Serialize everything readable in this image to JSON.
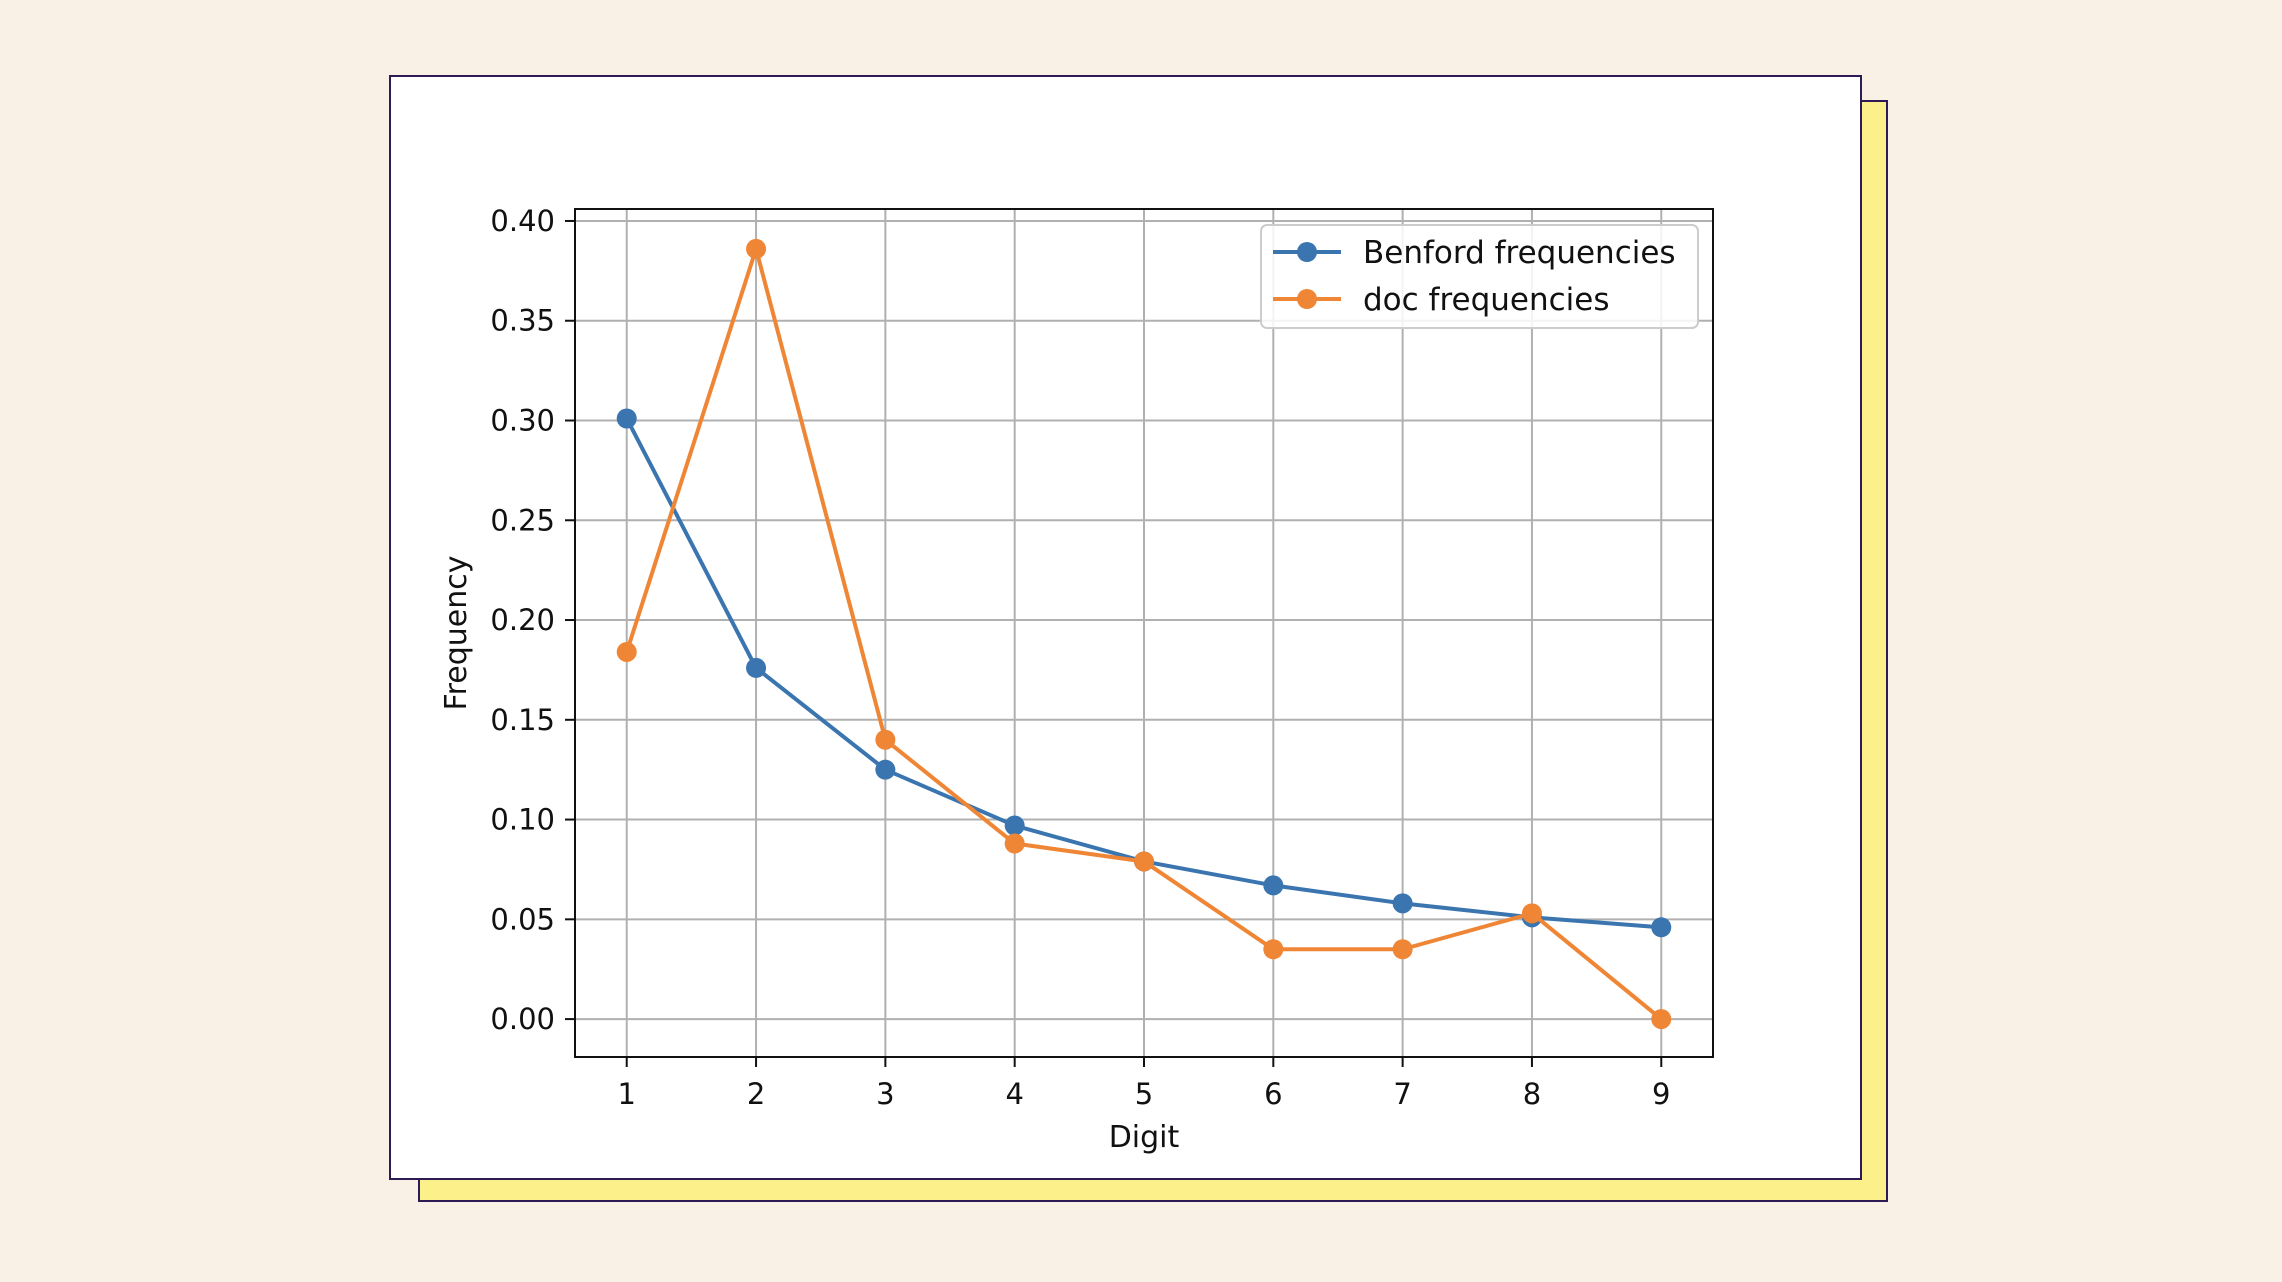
{
  "chart_data": {
    "type": "line",
    "title": "",
    "xlabel": "Digit",
    "ylabel": "Frequency",
    "x": [
      1,
      2,
      3,
      4,
      5,
      6,
      7,
      8,
      9
    ],
    "xticks": [
      "1",
      "2",
      "3",
      "4",
      "5",
      "6",
      "7",
      "8",
      "9"
    ],
    "yticks": [
      "0.00",
      "0.05",
      "0.10",
      "0.15",
      "0.20",
      "0.25",
      "0.30",
      "0.35",
      "0.40"
    ],
    "ylim": [
      -0.019,
      0.406
    ],
    "xlim": [
      0.6,
      9.4
    ],
    "grid": true,
    "legend_position": "top-right",
    "series": [
      {
        "name": "Benford frequencies",
        "color": "#3b75af",
        "values": [
          0.301,
          0.176,
          0.125,
          0.097,
          0.079,
          0.067,
          0.058,
          0.051,
          0.046
        ]
      },
      {
        "name": "doc frequencies",
        "color": "#ef8636",
        "values": [
          0.184,
          0.386,
          0.14,
          0.088,
          0.079,
          0.035,
          0.035,
          0.053,
          0.0
        ]
      }
    ]
  }
}
